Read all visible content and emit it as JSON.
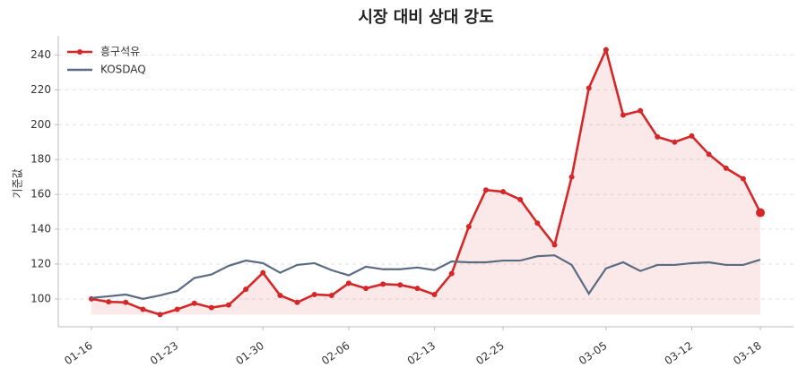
{
  "chart_data": {
    "type": "line",
    "title": "시장 대비 상대 강도",
    "y_label": "기준값",
    "categories": [
      "01-16",
      null,
      null,
      null,
      null,
      "01-23",
      null,
      null,
      null,
      null,
      "01-30",
      null,
      null,
      null,
      null,
      "02-06",
      null,
      null,
      null,
      null,
      "02-13",
      null,
      null,
      null,
      "02-25",
      null,
      null,
      null,
      null,
      null,
      "03-05",
      null,
      null,
      null,
      null,
      "03-12",
      null,
      null,
      null,
      "03-18"
    ],
    "series": [
      {
        "name": "흥구석유",
        "color": "#d62728",
        "fill": true,
        "markers": true,
        "values": [
          100,
          98.3,
          98,
          94,
          91,
          94,
          97.5,
          95,
          96.5,
          105.5,
          115,
          102,
          98,
          102.5,
          102,
          109,
          106,
          108.5,
          108,
          106,
          102.5,
          114.5,
          141.5,
          162.5,
          161.5,
          157,
          143.5,
          131,
          170,
          221,
          243,
          205.5,
          208,
          193,
          190,
          193.5,
          183,
          175,
          169,
          149.5
        ]
      },
      {
        "name": "KOSDAQ",
        "color": "#5a6b82",
        "fill": false,
        "markers": false,
        "values": [
          100.5,
          101.5,
          102.5,
          100,
          102,
          104.5,
          112,
          114,
          119,
          122,
          120.5,
          115,
          119.5,
          120.5,
          116.5,
          113.5,
          118.5,
          117,
          117,
          118,
          116.5,
          121.5,
          121,
          121,
          122,
          122,
          124.5,
          125,
          119.5,
          103,
          117.5,
          121,
          116,
          119.5,
          119.5,
          120.5,
          121,
          119.5,
          119.5,
          122.5
        ]
      }
    ],
    "ylim": [
      84,
      251
    ],
    "yticks": [
      100,
      120,
      140,
      160,
      180,
      200,
      220,
      240
    ],
    "grid": true,
    "legend": "upper-left"
  }
}
